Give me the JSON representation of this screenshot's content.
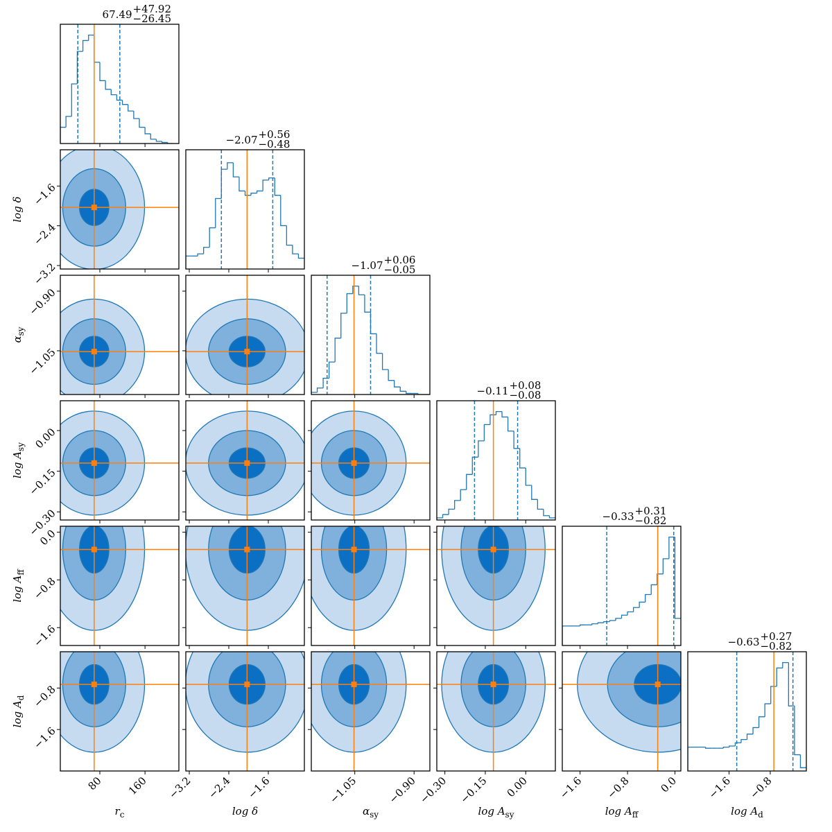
{
  "chart_data": {
    "type": "corner",
    "color": "#1f77b4",
    "truth_color": "#ff7f0e",
    "parameters": [
      {
        "label": {
          "text": "r",
          "sub": "c"
        },
        "median": 67.49,
        "plus": {
          "value": 47.92,
          "label": "+47.92"
        },
        "minus": {
          "value": 26.45,
          "label": "−26.45"
        },
        "truth": 70,
        "lim": [
          10,
          220
        ],
        "ticks": [
          80,
          160
        ],
        "hist": {
          "bins": [
            10,
            20,
            30,
            40,
            50,
            60,
            70,
            80,
            90,
            100,
            110,
            120,
            130,
            140,
            150,
            160,
            170,
            180,
            190,
            200,
            210
          ],
          "counts": [
            15,
            25,
            55,
            85,
            95,
            100,
            75,
            58,
            50,
            45,
            40,
            36,
            30,
            23,
            15,
            9,
            4,
            2,
            1,
            0
          ],
          "ylim": [
            0,
            110
          ]
        }
      },
      {
        "label": {
          "text": "log δ"
        },
        "median": {
          "value": -2.07,
          "label": "−2.07"
        },
        "plus": {
          "value": 0.56,
          "label": "+0.56"
        },
        "minus": {
          "value": 0.48,
          "label": "−0.48"
        },
        "truth": -2.03,
        "lim": [
          -3.27,
          -0.87
        ],
        "ticks": [
          {
            "value": -3.2,
            "label": "−3.2"
          },
          {
            "value": -2.4,
            "label": "−2.4"
          },
          {
            "value": -1.6,
            "label": "−1.6"
          }
        ],
        "hist": {
          "bins": [
            -3.27,
            -3.15,
            -3.03,
            -2.91,
            -2.79,
            -2.67,
            -2.55,
            -2.43,
            -2.31,
            -2.19,
            -2.07,
            -1.95,
            -1.83,
            -1.71,
            -1.59,
            -1.47,
            -1.35,
            -1.23,
            -1.11,
            -0.99,
            -0.87
          ],
          "counts": [
            12,
            12,
            14,
            20,
            38,
            65,
            92,
            98,
            85,
            72,
            68,
            70,
            72,
            82,
            84,
            68,
            40,
            22,
            14,
            10
          ],
          "ylim": [
            0,
            110
          ]
        }
      },
      {
        "label": {
          "text": "α",
          "sub": "sy"
        },
        "median": {
          "value": -1.07,
          "label": "−1.07"
        },
        "plus": {
          "value": 0.06,
          "label": "+0.06"
        },
        "minus": {
          "value": 0.05,
          "label": "−0.05"
        },
        "truth": -1.052,
        "lim": [
          -1.16,
          -0.86
        ],
        "ticks": [
          {
            "value": -1.05,
            "label": "−1.05"
          },
          {
            "value": -0.9,
            "label": "−0.90"
          }
        ],
        "hist": {
          "bins": [
            -1.16,
            -1.145,
            -1.13,
            -1.115,
            -1.1,
            -1.085,
            -1.07,
            -1.055,
            -1.04,
            -1.025,
            -1.01,
            -0.995,
            -0.98,
            -0.965,
            -0.95,
            -0.935,
            -0.92,
            -0.905,
            -0.89,
            -0.875,
            -0.86
          ],
          "counts": [
            2,
            6,
            15,
            30,
            52,
            75,
            93,
            100,
            92,
            76,
            56,
            38,
            23,
            13,
            7,
            3,
            1,
            1,
            0,
            0
          ],
          "ylim": [
            0,
            110
          ]
        }
      },
      {
        "label": {
          "text": "log A",
          "sub": "sy"
        },
        "median": {
          "value": -0.11,
          "label": "−0.11"
        },
        "plus": {
          "value": 0.08,
          "label": "+0.08"
        },
        "minus": {
          "value": 0.08,
          "label": "−0.08"
        },
        "truth": -0.12,
        "lim": [
          -0.33,
          0.11
        ],
        "ticks": [
          {
            "value": -0.3,
            "label": "−0.30"
          },
          {
            "value": -0.15,
            "label": "−0.15"
          },
          {
            "value": 0,
            "label": "0.00"
          }
        ],
        "hist": {
          "bins": [
            -0.33,
            -0.308,
            -0.286,
            -0.264,
            -0.242,
            -0.22,
            -0.198,
            -0.176,
            -0.154,
            -0.132,
            -0.11,
            -0.088,
            -0.066,
            -0.044,
            -0.022,
            0,
            0.022,
            0.044,
            0.066,
            0.088,
            0.11
          ],
          "counts": [
            2,
            5,
            10,
            18,
            28,
            42,
            58,
            73,
            88,
            97,
            100,
            95,
            82,
            66,
            48,
            32,
            19,
            10,
            4,
            2
          ],
          "ylim": [
            0,
            110
          ]
        }
      },
      {
        "label": {
          "text": "log A",
          "sub": "ff"
        },
        "median": {
          "value": -0.33,
          "label": "−0.33"
        },
        "plus": {
          "value": 0.31,
          "label": "+0.31"
        },
        "minus": {
          "value": 0.82,
          "label": "−0.82"
        },
        "truth": -0.29,
        "lim": [
          -1.9,
          0.1
        ],
        "ticks": [
          {
            "value": -1.6,
            "label": "−1.6"
          },
          {
            "value": -0.8,
            "label": "−0.8"
          },
          {
            "value": 0,
            "label": "0.0"
          }
        ],
        "hist": {
          "bins": [
            -1.9,
            -1.8,
            -1.7,
            -1.6,
            -1.5,
            -1.4,
            -1.3,
            -1.2,
            -1.1,
            -1.0,
            -0.9,
            -0.8,
            -0.7,
            -0.6,
            -0.5,
            -0.4,
            -0.3,
            -0.2,
            -0.1,
            0,
            0.1
          ],
          "counts": [
            18,
            18,
            18,
            19,
            19,
            20,
            21,
            22,
            23,
            25,
            28,
            31,
            35,
            40,
            47,
            56,
            66,
            80,
            100,
            25
          ],
          "ylim": [
            0,
            110
          ]
        }
      },
      {
        "label": {
          "text": "log A",
          "sub": "d"
        },
        "median": {
          "value": -0.63,
          "label": "−0.63"
        },
        "plus": {
          "value": 0.27,
          "label": "+0.27"
        },
        "minus": {
          "value": 0.82,
          "label": "−0.82"
        },
        "truth": -0.73,
        "lim": [
          -2.4,
          -0.1
        ],
        "ticks": [
          {
            "value": -1.6,
            "label": "−1.6"
          },
          {
            "value": -0.8,
            "label": "−0.8"
          }
        ],
        "hist": {
          "bins": [
            -2.4,
            -2.285,
            -2.17,
            -2.055,
            -1.94,
            -1.825,
            -1.71,
            -1.595,
            -1.48,
            -1.365,
            -1.25,
            -1.135,
            -1.02,
            -0.905,
            -0.79,
            -0.675,
            -0.56,
            -0.445,
            -0.33,
            -0.215,
            -0.1
          ],
          "counts": [
            22,
            22,
            22,
            21,
            21,
            21,
            22,
            23,
            26,
            29,
            34,
            40,
            50,
            62,
            78,
            95,
            100,
            60,
            15,
            3
          ],
          "ylim": [
            0,
            110
          ]
        }
      }
    ]
  }
}
